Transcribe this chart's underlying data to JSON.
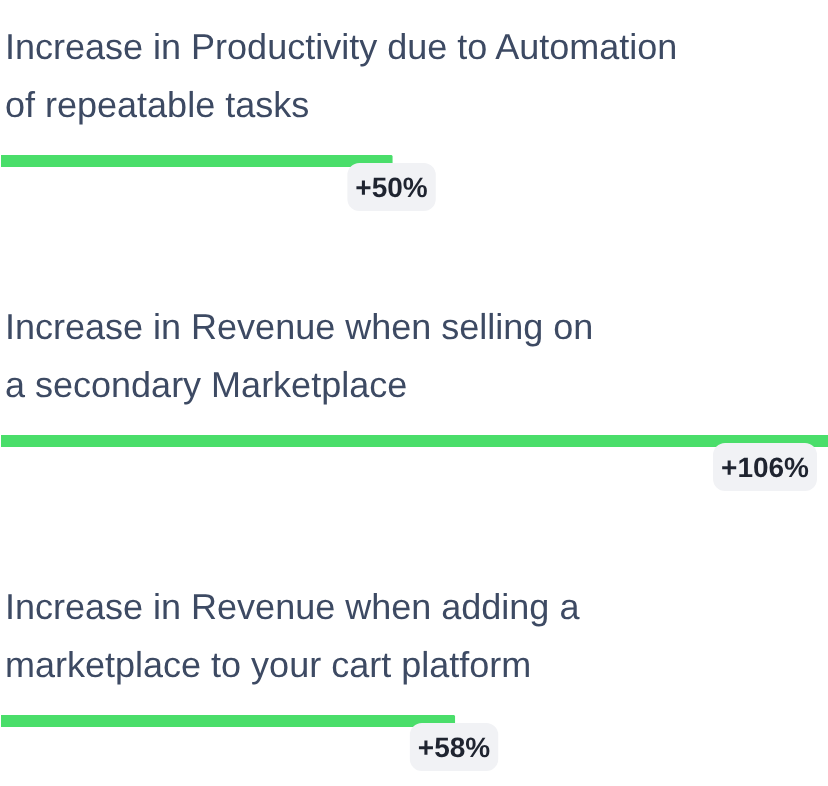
{
  "chart_data": {
    "type": "bar",
    "orientation": "horizontal",
    "categories": [
      "Increase in Productivity due to Automation\nof repeatable tasks",
      "Increase in Revenue when selling on\na secondary Marketplace",
      "Increase in Revenue when adding a\nmarketplace to your cart platform"
    ],
    "series": [
      {
        "color": "#4ade6a",
        "values": [
          50,
          106,
          58
        ],
        "value_labels": [
          "+50%",
          "+106%",
          "+58%"
        ]
      }
    ],
    "tick_labels": false
  }
}
